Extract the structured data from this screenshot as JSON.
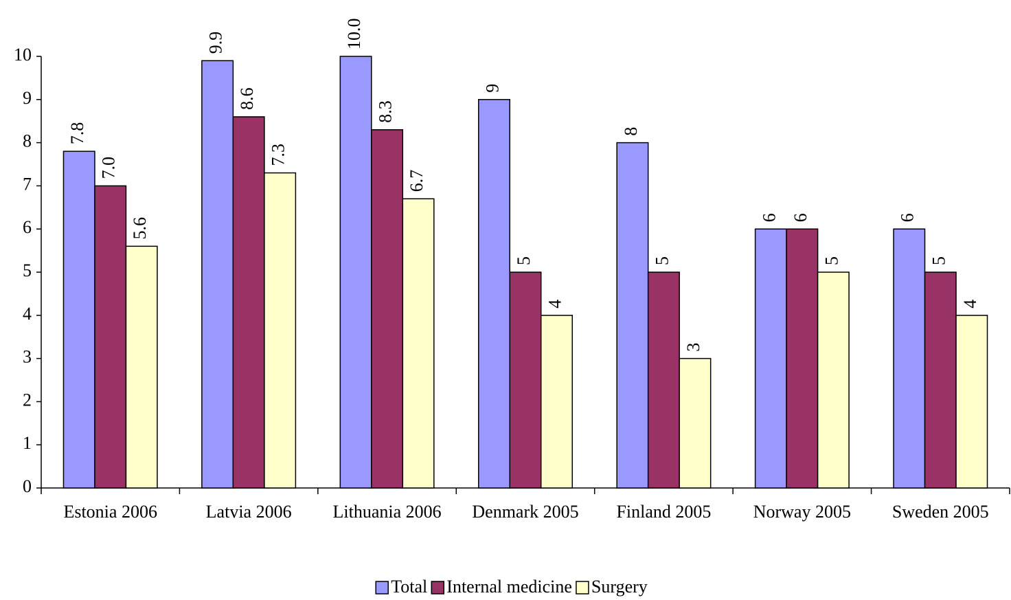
{
  "chart_data": {
    "type": "bar",
    "categories": [
      "Estonia 2006",
      "Latvia 2006",
      "Lithuania 2006",
      "Denmark 2005",
      "Finland 2005",
      "Norway 2005",
      "Sweden 2005"
    ],
    "series": [
      {
        "name": "Total",
        "color": "#9999ff",
        "values": [
          7.8,
          9.9,
          10.0,
          9,
          8,
          6,
          6
        ],
        "value_labels": [
          "7.8",
          "9.9",
          "10.0",
          "9",
          "8",
          "6",
          "6"
        ]
      },
      {
        "name": "Internal medicine",
        "color": "#993366",
        "values": [
          7.0,
          8.6,
          8.3,
          5,
          5,
          6,
          5
        ],
        "value_labels": [
          "7.0",
          "8.6",
          "8.3",
          "5",
          "5",
          "6",
          "5"
        ]
      },
      {
        "name": "Surgery",
        "color": "#ffffcc",
        "values": [
          5.6,
          7.3,
          6.7,
          4,
          3,
          5,
          4
        ],
        "value_labels": [
          "5.6",
          "7.3",
          "6.7",
          "4",
          "3",
          "5",
          "4"
        ]
      }
    ],
    "ylim": [
      0,
      10
    ],
    "yticks": [
      0,
      1,
      2,
      3,
      4,
      5,
      6,
      7,
      8,
      9,
      10
    ],
    "grid": false,
    "legend": "bottom"
  }
}
